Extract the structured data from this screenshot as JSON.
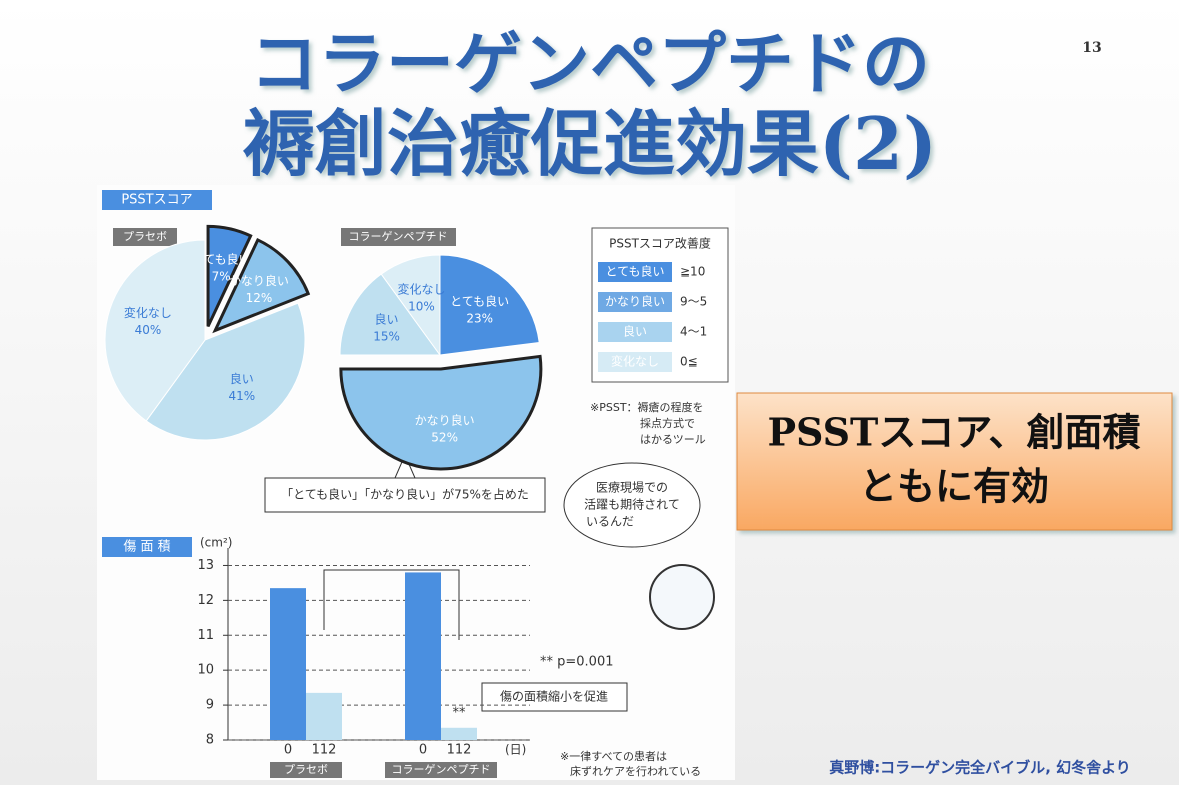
{
  "slide": {
    "title_line1": "コラーゲンペプチドの",
    "title_line2": "褥創治癒促進効果(2)",
    "page_number": "13",
    "callout_line1": "PSSTスコア、創面積",
    "callout_line2": "ともに有効",
    "source": "真野博:コラーゲン完全バイブル, 幻冬舎より",
    "pie_section_label": "PSSTスコア",
    "bar_section_label": "傷 面 積",
    "pie_bubble": "「とても良い」「かなり良い」が75%を占めた",
    "character_line1": "医療現場での",
    "character_line2": "活躍も期待されて",
    "character_line3": "いるんだ",
    "psst_note_line1": "※PSST：褥瘡の程度を",
    "psst_note_line2": "採点方式で",
    "psst_note_line3": "はかるツール",
    "psst_legend": {
      "title": "PSSTスコア改善度",
      "rows": [
        {
          "label": "とても良い",
          "range": "≧10"
        },
        {
          "label": "かなり良い",
          "range": "9～5"
        },
        {
          "label": "良い",
          "range": "4～1"
        },
        {
          "label": "変化なし",
          "range": "0≦"
        }
      ]
    },
    "p_value": "** p=0.001",
    "bar_callout": "傷の面積縮小を促進",
    "significance_mark": "**",
    "bar_footnote_line1": "※一律すべての患者は",
    "bar_footnote_line2": "床ずれケアを行われている"
  },
  "chart_data": [
    {
      "type": "pie",
      "title": "プラセボ",
      "categories": [
        "とても良い",
        "かなり良い",
        "良い",
        "変化なし"
      ],
      "values": [
        7,
        12,
        41,
        40
      ],
      "value_labels": [
        "7%",
        "12%",
        "41%",
        "40%"
      ],
      "colors": [
        "#4a8fe0",
        "#8cc4ec",
        "#bfe0f0",
        "#dceef6"
      ],
      "explode": [
        true,
        true,
        false,
        false
      ]
    },
    {
      "type": "pie",
      "title": "コラーゲンペプチド",
      "categories": [
        "とても良い",
        "かなり良い",
        "良い",
        "変化なし"
      ],
      "values": [
        23,
        52,
        15,
        10
      ],
      "value_labels": [
        "23%",
        "52%",
        "15%",
        "10%"
      ],
      "colors": [
        "#4a8fe0",
        "#8cc4ec",
        "#bfe0f0",
        "#dceef6"
      ],
      "explode": [
        false,
        true,
        false,
        false
      ]
    },
    {
      "type": "bar",
      "y_label": "(cm²)",
      "x_label": "(日)",
      "categories": [
        "0",
        "112",
        "0",
        "112"
      ],
      "groups": [
        "プラセボ",
        "コラーゲンペプチド"
      ],
      "values": [
        12.35,
        9.35,
        12.8,
        8.35
      ],
      "colors": [
        "#4a8fe0",
        "#bfe0f0",
        "#4a8fe0",
        "#bfe0f0"
      ],
      "ylim": [
        8,
        13.5
      ],
      "yticks": [
        8,
        9,
        10,
        11,
        12,
        13
      ],
      "grid": true
    }
  ]
}
